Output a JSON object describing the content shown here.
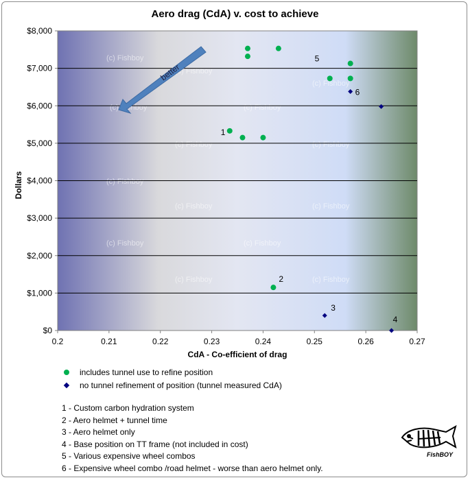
{
  "chart_data": {
    "type": "scatter",
    "title": "Aero drag (CdA) v. cost to achieve",
    "xlabel": "CdA - Co-efficient of drag",
    "ylabel": "Dollars",
    "xlim": [
      0.2,
      0.27
    ],
    "ylim": [
      0,
      8000
    ],
    "x_ticks": [
      "0.2",
      "0.21",
      "0.22",
      "0.23",
      "0.24",
      "0.25",
      "0.26",
      "0.27"
    ],
    "y_ticks": [
      "$0",
      "$1,000",
      "$2,000",
      "$3,000",
      "$4,000",
      "$5,000",
      "$6,000",
      "$7,000",
      "$8,000"
    ],
    "grid": "horizontal",
    "series": [
      {
        "name": "includes tunnel use to refine position",
        "color": "#00b050",
        "marker": "circle",
        "points": [
          {
            "x": 0.237,
            "y": 7530
          },
          {
            "x": 0.243,
            "y": 7530
          },
          {
            "x": 0.237,
            "y": 7320
          },
          {
            "x": 0.257,
            "y": 7130
          },
          {
            "x": 0.253,
            "y": 6730
          },
          {
            "x": 0.257,
            "y": 6730
          },
          {
            "x": 0.2335,
            "y": 5330
          },
          {
            "x": 0.236,
            "y": 5150
          },
          {
            "x": 0.24,
            "y": 5150
          },
          {
            "x": 0.242,
            "y": 1150
          }
        ]
      },
      {
        "name": "no tunnel refinement of position (tunnel measured CdA)",
        "color": "#000080",
        "marker": "diamond",
        "points": [
          {
            "x": 0.257,
            "y": 6380
          },
          {
            "x": 0.263,
            "y": 5980
          },
          {
            "x": 0.252,
            "y": 400
          },
          {
            "x": 0.265,
            "y": 0
          }
        ]
      }
    ],
    "point_labels": [
      {
        "text": "1",
        "x": 0.2335,
        "y": 5330
      },
      {
        "text": "2",
        "x": 0.242,
        "y": 1150
      },
      {
        "text": "3",
        "x": 0.252,
        "y": 400
      },
      {
        "text": "4",
        "x": 0.265,
        "y": 0
      },
      {
        "text": "5",
        "x": 0.257,
        "y": 7130
      },
      {
        "text": "6",
        "x": 0.257,
        "y": 6380
      }
    ],
    "annotation_arrow": "better",
    "watermark": "(c) Fishboy",
    "legend_position": "bottom-left"
  },
  "notes": [
    "1 - Custom carbon hydration system",
    "2 - Aero helmet + tunnel time",
    "3 - Aero helmet only",
    "4 - Base position on TT frame (not included in cost)",
    "5 - Various expensive wheel combos",
    "6 - Expensive wheel combo /road helmet  - worse than aero helmet only."
  ],
  "logo_text": "FishBOY"
}
